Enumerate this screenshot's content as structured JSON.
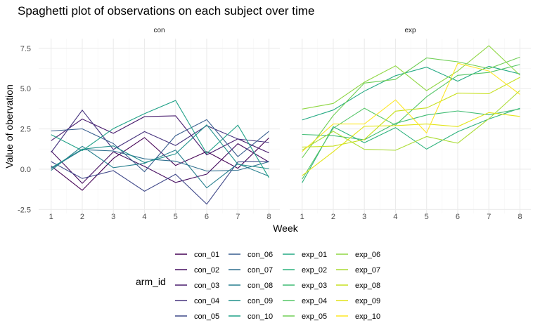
{
  "chart_data": {
    "type": "line",
    "title": "Spaghetti plot of observations on each subject over time",
    "xlabel": "Week",
    "ylabel": "Value of obervation",
    "x": [
      1,
      2,
      3,
      4,
      5,
      6,
      7,
      8
    ],
    "x_ticks": [
      "1",
      "2",
      "3",
      "4",
      "5",
      "6",
      "7",
      "8"
    ],
    "y_ticks": [
      "-2.5",
      "0.0",
      "2.5",
      "5.0",
      "7.5"
    ],
    "y_tick_values": [
      -2.5,
      0,
      2.5,
      5,
      7.5
    ],
    "ylim": [
      -2.75,
      8.1
    ],
    "xlim": [
      0.6,
      8.35
    ],
    "grid": true,
    "legend_title": "arm_id",
    "legend_position": "bottom",
    "facets": [
      {
        "label": "con",
        "series": [
          {
            "name": "con_01",
            "color": "#440154",
            "values": [
              0.2,
              -1.31,
              0.66,
              1.96,
              0.23,
              1.09,
              0.05,
              1.94
            ]
          },
          {
            "name": "con_02",
            "color": "#470E61",
            "values": [
              1.13,
              -0.88,
              1.07,
              0.17,
              -0.83,
              -0.31,
              1.58,
              0.44
            ]
          },
          {
            "name": "con_03",
            "color": "#481B6D",
            "values": [
              1.77,
              3.11,
              2.22,
              3.26,
              3.31,
              0.89,
              1.88,
              1.01
            ]
          },
          {
            "name": "con_04",
            "color": "#46337E",
            "values": [
              1.04,
              3.66,
              1.22,
              2.33,
              1.47,
              2.7,
              1.87,
              1.66
            ]
          },
          {
            "name": "con_05",
            "color": "#3F4889",
            "values": [
              0.47,
              -0.58,
              -0.09,
              -1.37,
              -0.32,
              -2.17,
              0.45,
              0.48
            ]
          },
          {
            "name": "con_06",
            "color": "#365C8D",
            "values": [
              2.37,
              2.5,
              1.59,
              -0.16,
              2.08,
              3.07,
              0.78,
              2.35
            ]
          },
          {
            "name": "con_07",
            "color": "#2E6E8E",
            "values": [
              0.03,
              1.21,
              1.13,
              0.64,
              0.49,
              -0.12,
              -0.07,
              0.46
            ]
          },
          {
            "name": "con_08",
            "color": "#277F8E",
            "values": [
              -0.08,
              1.42,
              0.09,
              0.36,
              1.18,
              -1.16,
              0.33,
              -0.44
            ]
          },
          {
            "name": "con_09",
            "color": "#21908C",
            "values": [
              0.08,
              1.24,
              1.44,
              0.41,
              0.95,
              2.75,
              0.3,
              0.03
            ]
          },
          {
            "name": "con_10",
            "color": "#1FA187",
            "values": [
              2.14,
              1.15,
              2.52,
              3.44,
              4.26,
              0.97,
              2.73,
              -0.53
            ]
          }
        ]
      },
      {
        "label": "exp",
        "series": [
          {
            "name": "exp_01",
            "color": "#24AA83",
            "values": [
              3.05,
              3.67,
              4.84,
              5.8,
              6.33,
              5.46,
              6.38,
              5.91
            ]
          },
          {
            "name": "exp_02",
            "color": "#2DB27D",
            "values": [
              -0.84,
              2.63,
              1.64,
              2.58,
              1.24,
              2.32,
              3.11,
              3.78
            ]
          },
          {
            "name": "exp_03",
            "color": "#3FBC73",
            "values": [
              2.15,
              2.08,
              1.82,
              2.84,
              3.36,
              3.61,
              3.37,
              3.74
            ]
          },
          {
            "name": "exp_04",
            "color": "#55C667",
            "values": [
              -0.62,
              2.54,
              3.78,
              2.73,
              4.49,
              5.82,
              6.0,
              6.49
            ]
          },
          {
            "name": "exp_05",
            "color": "#70CF57",
            "values": [
              0.7,
              3.33,
              5.34,
              5.57,
              6.9,
              6.66,
              6.24,
              6.95
            ]
          },
          {
            "name": "exp_06",
            "color": "#8FD744",
            "values": [
              3.73,
              4.08,
              5.4,
              6.41,
              4.87,
              6.09,
              7.66,
              5.83
            ]
          },
          {
            "name": "exp_07",
            "color": "#AADC32",
            "values": [
              1.18,
              2.35,
              1.23,
              1.17,
              2.02,
              1.61,
              3.13,
              4.88
            ]
          },
          {
            "name": "exp_08",
            "color": "#C7E020",
            "values": [
              1.37,
              1.43,
              1.84,
              3.6,
              3.8,
              4.72,
              4.68,
              5.7
            ]
          },
          {
            "name": "exp_09",
            "color": "#E2E418",
            "values": [
              -0.4,
              1.08,
              2.66,
              2.7,
              2.8,
              2.64,
              3.51,
              3.27
            ]
          },
          {
            "name": "exp_10",
            "color": "#FDE725",
            "values": [
              1.09,
              2.8,
              2.8,
              4.3,
              2.25,
              6.57,
              6.09,
              4.64
            ]
          }
        ]
      }
    ]
  }
}
